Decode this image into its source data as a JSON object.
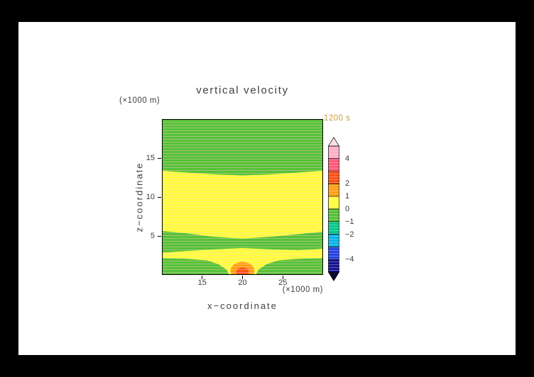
{
  "window": {
    "bg": "#000000",
    "canvas_bg": "#ffffff"
  },
  "title": {
    "text": "vertical velocity",
    "color": "#404040"
  },
  "time_label": {
    "text": "1200 s",
    "color": "#c89a3c"
  },
  "axes": {
    "x": {
      "title": "x−coordinate",
      "unit": "(×1000 m)",
      "range": [
        10,
        30
      ],
      "ticks": [
        15,
        20,
        25
      ]
    },
    "z": {
      "title": "z−coordinate",
      "unit": "(×1000 m)",
      "range": [
        0,
        20
      ],
      "ticks": [
        5,
        10,
        15
      ]
    }
  },
  "colorbar": {
    "position": "right",
    "range": [
      -5,
      5
    ],
    "labels": [
      4,
      2,
      1,
      0,
      -1,
      -2,
      -4
    ],
    "over_color": "#ffdfe7",
    "under_color": "#0a0a32",
    "segments": [
      {
        "range": [
          4,
          5
        ],
        "color": "#ffb0c8"
      },
      {
        "range": [
          3,
          4
        ],
        "color": "#ff5a78"
      },
      {
        "range": [
          2,
          3
        ],
        "color": "#ff5014"
      },
      {
        "range": [
          1,
          2
        ],
        "color": "#ffa014"
      },
      {
        "range": [
          0,
          1
        ],
        "color": "#ffff3c"
      },
      {
        "range": [
          -1,
          0
        ],
        "color": "#55c237"
      },
      {
        "range": [
          -2,
          -1
        ],
        "color": "#00c88c"
      },
      {
        "range": [
          -3,
          -2
        ],
        "color": "#00b4e6"
      },
      {
        "range": [
          -4,
          -3
        ],
        "color": "#2341e8"
      },
      {
        "range": [
          -5,
          -4
        ],
        "color": "#141496"
      }
    ]
  },
  "chart_data": {
    "type": "heatmap",
    "title": "vertical velocity",
    "time": "1200 s",
    "xlabel": "x−coordinate (×1000 m)",
    "ylabel": "z−coordinate (×1000 m)",
    "x_range": [
      10,
      30
    ],
    "z_range": [
      0,
      20
    ],
    "contour_levels": [
      -5,
      -4,
      -3,
      -2,
      -1,
      0,
      1,
      2,
      3,
      4,
      5
    ],
    "grid": false,
    "colorbar_position": "right",
    "regions": [
      {
        "name": "background-weak-updraft",
        "type": "rect",
        "x": [
          10,
          30
        ],
        "z": [
          0,
          20
        ],
        "value_range": [
          0,
          1
        ],
        "color": "#ffff3c"
      },
      {
        "name": "upper-downdraft-layer",
        "type": "polygon",
        "value_range": [
          -1,
          0
        ],
        "color": "#55c237",
        "points": [
          [
            10,
            20
          ],
          [
            30,
            20
          ],
          [
            30,
            13.4
          ],
          [
            26,
            13.1
          ],
          [
            23,
            12.9
          ],
          [
            20,
            12.8
          ],
          [
            17,
            12.9
          ],
          [
            14,
            13.1
          ],
          [
            10,
            13.4
          ]
        ]
      },
      {
        "name": "mid-low-downdraft-band",
        "type": "polygon",
        "value_range": [
          -1,
          0
        ],
        "color": "#55c237",
        "points": [
          [
            10,
            5.6
          ],
          [
            13,
            5.3
          ],
          [
            16,
            4.9
          ],
          [
            20,
            4.6
          ],
          [
            24,
            4.9
          ],
          [
            27,
            5.2
          ],
          [
            30,
            5.5
          ],
          [
            30,
            3.3
          ],
          [
            27,
            3.1
          ],
          [
            24,
            3.2
          ],
          [
            20,
            3.4
          ],
          [
            16,
            3.2
          ],
          [
            13,
            3.0
          ],
          [
            10,
            2.8
          ]
        ]
      },
      {
        "name": "bottom-left-downdraft",
        "type": "polygon",
        "value_range": [
          -1,
          0
        ],
        "color": "#55c237",
        "points": [
          [
            10,
            2.1
          ],
          [
            13,
            2.0
          ],
          [
            15.5,
            1.8
          ],
          [
            17,
            1.3
          ],
          [
            18,
            0.6
          ],
          [
            18.3,
            0
          ],
          [
            10,
            0
          ]
        ]
      },
      {
        "name": "bottom-right-downdraft",
        "type": "polygon",
        "value_range": [
          -1,
          0
        ],
        "color": "#55c237",
        "points": [
          [
            21.7,
            0
          ],
          [
            22,
            0.6
          ],
          [
            23,
            1.3
          ],
          [
            24.5,
            1.8
          ],
          [
            27,
            2.0
          ],
          [
            30,
            2.1
          ],
          [
            30,
            0
          ]
        ]
      },
      {
        "name": "surface-updraft-outer",
        "type": "ellipse",
        "cx": 20,
        "cz": 0.45,
        "rx": 1.5,
        "rz": 1.15,
        "value_range": [
          1,
          2
        ],
        "color": "#ffa014"
      },
      {
        "name": "surface-updraft-core",
        "type": "ellipse",
        "cx": 20,
        "cz": 0.25,
        "rx": 0.8,
        "rz": 0.62,
        "value_range": [
          2,
          3
        ],
        "color": "#ff5014"
      }
    ]
  }
}
